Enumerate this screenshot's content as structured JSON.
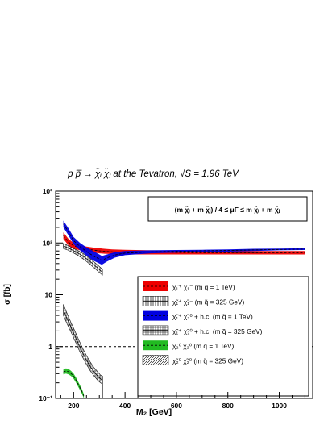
{
  "chart_data": {
    "type": "line",
    "title": "p p̅ → χ̃ᵢ χ̃ⱼ at the Tevatron, √S = 1.96 TeV",
    "xlabel": "M₂ [GeV]",
    "ylabel": "σ [fb]",
    "xlim": [
      130,
      1130
    ],
    "ylim": [
      0.1,
      1000
    ],
    "yscale": "log",
    "x_ticks": [
      200,
      400,
      600,
      800,
      1000
    ],
    "y_ticks": [
      {
        "value": 0.1,
        "label": "10⁻¹"
      },
      {
        "value": 1,
        "label": "1"
      },
      {
        "value": 10,
        "label": "10"
      },
      {
        "value": 100,
        "label": "10²"
      },
      {
        "value": 1000,
        "label": "10³"
      }
    ],
    "reference_line": {
      "y": 1,
      "style": "dashed"
    },
    "annotation": "(m χ̃ᵢ + m χ̃ⱼ) / 4 ≤ μF ≤ m χ̃ᵢ + m χ̃ⱼ",
    "legend_position": "bottom-right",
    "series": [
      {
        "name": "χ̃₁⁺ χ̃₁⁻ (m q̃ = 1 TeV)",
        "color": "#ee0000",
        "style": "band",
        "x": [
          160,
          180,
          200,
          225,
          250,
          280,
          300,
          320,
          350,
          400,
          500,
          600,
          700,
          800,
          900,
          1000,
          1100
        ],
        "lo": [
          120,
          90,
          78,
          72,
          68,
          65,
          63,
          62,
          61,
          60,
          60,
          60,
          60,
          60,
          60,
          60,
          60
        ],
        "hi": [
          160,
          120,
          100,
          90,
          85,
          81,
          79,
          77,
          75,
          74,
          72,
          71,
          70,
          70,
          70,
          70,
          70
        ]
      },
      {
        "name": "χ̃₁⁺ χ̃₁⁻ (m q̃ = 325 GeV)",
        "color": "#000000",
        "style": "vertical-hatch",
        "x": [
          160,
          180,
          200,
          220,
          240,
          260,
          280,
          300,
          312
        ],
        "lo": [
          78,
          72,
          64,
          56,
          48,
          40,
          33,
          27,
          24
        ],
        "hi": [
          98,
          88,
          78,
          70,
          61,
          52,
          43,
          35,
          31
        ]
      },
      {
        "name": "χ̃₁⁺ χ̃₂⁰ + h.c. (m q̃ = 1 TeV)",
        "color": "#0000e0",
        "style": "band",
        "x": [
          160,
          180,
          200,
          225,
          250,
          275,
          300,
          310,
          330,
          360,
          400,
          500,
          600,
          700,
          800,
          900,
          1000,
          1100
        ],
        "lo": [
          200,
          140,
          95,
          72,
          57,
          46,
          40,
          38,
          44,
          52,
          58,
          63,
          65,
          67,
          68,
          70,
          72,
          73
        ],
        "hi": [
          270,
          190,
          130,
          100,
          82,
          70,
          60,
          56,
          60,
          66,
          70,
          72,
          73,
          74,
          75,
          77,
          78,
          79
        ]
      },
      {
        "name": "χ̃₁⁺ χ̃₂⁰ + h.c. (m q̃ = 325 GeV)",
        "color": "#000000",
        "style": "grid-hatch",
        "x": [
          160,
          175,
          190,
          205,
          220,
          235,
          250,
          265,
          280,
          295,
          305,
          312
        ],
        "lo": [
          4.0,
          2.7,
          1.9,
          1.3,
          0.88,
          0.62,
          0.45,
          0.34,
          0.27,
          0.22,
          0.2,
          0.19
        ],
        "hi": [
          6.5,
          4.3,
          2.9,
          2.0,
          1.35,
          0.93,
          0.67,
          0.5,
          0.39,
          0.32,
          0.28,
          0.27
        ]
      },
      {
        "name": "χ̃₂⁰ χ̃₂⁰ (m q̃ = 1 TeV)",
        "color": "#22bb22",
        "style": "band",
        "x": [
          160,
          170,
          180,
          190,
          200,
          210,
          220,
          230,
          240
        ],
        "lo": [
          0.29,
          0.3,
          0.29,
          0.27,
          0.24,
          0.2,
          0.16,
          0.13,
          0.1
        ],
        "hi": [
          0.36,
          0.38,
          0.37,
          0.34,
          0.3,
          0.25,
          0.2,
          0.16,
          0.12
        ]
      },
      {
        "name": "χ̃₂⁰ χ̃₂⁰ (m q̃ = 325 GeV)",
        "color": "#000000",
        "style": "diagonal-hatch",
        "x": [],
        "lo": [],
        "hi": []
      }
    ]
  }
}
